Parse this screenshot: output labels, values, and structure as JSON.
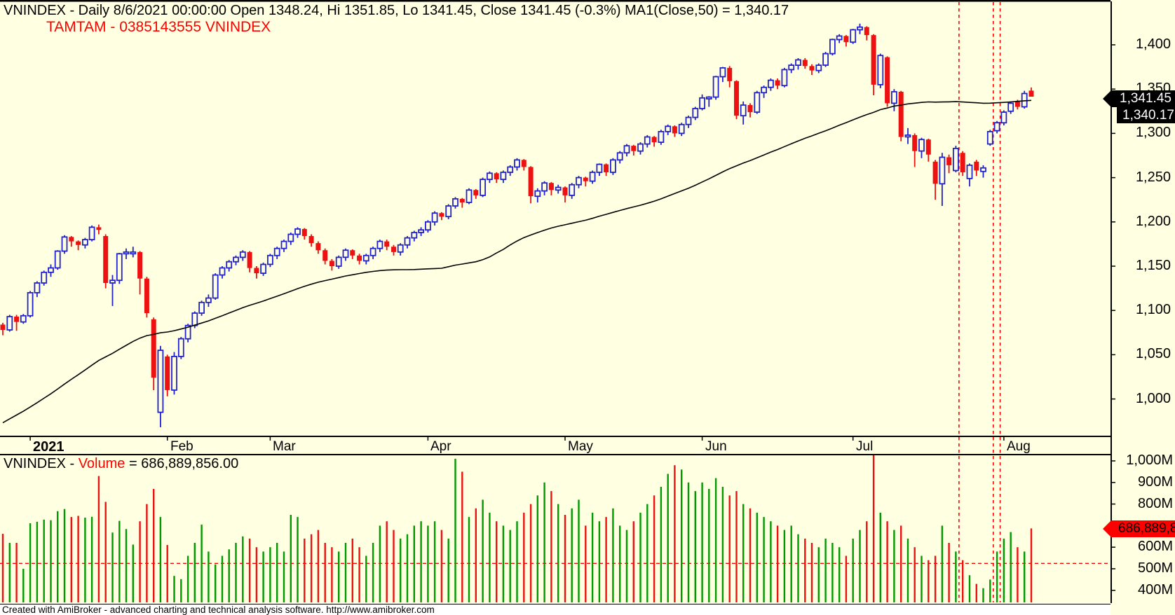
{
  "header": {
    "title": "VNINDEX - Daily 8/6/2021 00:00:00 Open 1348.24, Hi 1351.85, Lo 1341.45, Close 1341.45 (-0.3%) MA1(Close,50) = 1,340.17",
    "watermark": "TAMTAM - 0385143555 VNINDEX"
  },
  "volume_header": {
    "prefix": "VNINDEX - ",
    "label": "Volume",
    "suffix": " = 686,889,856.00"
  },
  "footer": {
    "text": "Created with AmiBroker - advanced charting and technical analysis software. http://www.amibroker.com"
  },
  "price_axis": {
    "ticks": [
      {
        "label": "1,400",
        "value": 1400
      },
      {
        "label": "1,350",
        "value": 1350
      },
      {
        "label": "1,300",
        "value": 1300
      },
      {
        "label": "1,250",
        "value": 1250
      },
      {
        "label": "1,200",
        "value": 1200
      },
      {
        "label": "1,150",
        "value": 1150
      },
      {
        "label": "1,100",
        "value": 1100
      },
      {
        "label": "1,050",
        "value": 1050
      },
      {
        "label": "1,000",
        "value": 1000
      }
    ],
    "last_close_label": "1,341.45",
    "ma_value_label": "1,340.17"
  },
  "volume_axis": {
    "ticks": [
      {
        "label": "1,000M",
        "value": 1000
      },
      {
        "label": "900M",
        "value": 900
      },
      {
        "label": "800M",
        "value": 800
      },
      {
        "label": "600M",
        "value": 600
      },
      {
        "label": "500M",
        "value": 500
      },
      {
        "label": "400M",
        "value": 400
      }
    ],
    "current_volume_label": "686,889,8"
  },
  "date_axis": {
    "labels": [
      {
        "text": "2021",
        "index": 4,
        "bold": true
      },
      {
        "text": "Feb",
        "index": 24,
        "bold": false
      },
      {
        "text": "Mar",
        "index": 39,
        "bold": false
      },
      {
        "text": "Apr",
        "index": 62,
        "bold": false
      },
      {
        "text": "May",
        "index": 82,
        "bold": false
      },
      {
        "text": "Jun",
        "index": 102,
        "bold": false
      },
      {
        "text": "Jul",
        "index": 124,
        "bold": false
      },
      {
        "text": "Aug",
        "index": 146,
        "bold": false
      }
    ]
  },
  "colors": {
    "background": "#FFFFE1",
    "candle_up": "#2222CC",
    "candle_down": "#EE1111",
    "volume_up": "#009900",
    "volume_down": "#EE1111",
    "ma_line": "#000000",
    "marker": "#FF0000",
    "border": "#000000"
  },
  "chart_data": {
    "type": "candlestick+volume",
    "symbol": "VNINDEX",
    "interval": "Daily",
    "last_bar_date": "8/6/2021 00:00:00",
    "last_bar": {
      "open": 1348.24,
      "high": 1351.85,
      "low": 1341.45,
      "close": 1341.45,
      "change_pct": -0.3,
      "volume": 686889856
    },
    "ma": {
      "type": "MA1(Close,50)",
      "period": 50,
      "last_value": 1340.17,
      "seed_from": 870,
      "seed_to": 1072,
      "seed_count": 49
    },
    "price_axis_range": [
      961,
      1450
    ],
    "volume_axis_range_m": [
      350,
      1015
    ],
    "markers": {
      "vline_indices": [
        139,
        144,
        145
      ],
      "volume_hline_m": 525
    },
    "candles_format": [
      "open",
      "high",
      "low",
      "close",
      "volume_millions"
    ],
    "candles": [
      [
        1084,
        1086,
        1072,
        1078,
        662
      ],
      [
        1078,
        1095,
        1076,
        1093,
        620
      ],
      [
        1093,
        1095,
        1077,
        1087,
        620
      ],
      [
        1087,
        1096,
        1085,
        1094,
        500
      ],
      [
        1094,
        1122,
        1092,
        1120,
        711
      ],
      [
        1120,
        1133,
        1115,
        1131,
        718
      ],
      [
        1131,
        1145,
        1128,
        1143,
        728
      ],
      [
        1143,
        1152,
        1138,
        1148,
        725
      ],
      [
        1148,
        1168,
        1146,
        1167,
        767
      ],
      [
        1167,
        1185,
        1164,
        1183,
        777
      ],
      [
        1183,
        1184,
        1172,
        1178,
        740
      ],
      [
        1178,
        1179,
        1168,
        1174,
        745
      ],
      [
        1174,
        1182,
        1170,
        1180,
        737
      ],
      [
        1180,
        1196,
        1178,
        1194,
        741
      ],
      [
        1194,
        1197,
        1186,
        1191,
        930
      ],
      [
        1184,
        1186,
        1125,
        1131,
        810
      ],
      [
        1131,
        1140,
        1105,
        1134,
        668
      ],
      [
        1134,
        1165,
        1130,
        1164,
        722
      ],
      [
        1164,
        1170,
        1158,
        1166,
        684
      ],
      [
        1166,
        1172,
        1160,
        1166,
        612
      ],
      [
        1166,
        1167,
        1118,
        1136,
        720
      ],
      [
        1136,
        1138,
        1092,
        1097,
        800
      ],
      [
        1090,
        1092,
        1010,
        1024,
        870
      ],
      [
        985,
        1060,
        968,
        1055,
        740
      ],
      [
        1048,
        1050,
        1003,
        1010,
        610
      ],
      [
        1010,
        1053,
        1005,
        1048,
        467
      ],
      [
        1048,
        1070,
        1045,
        1068,
        452
      ],
      [
        1068,
        1085,
        1064,
        1083,
        560
      ],
      [
        1083,
        1099,
        1080,
        1097,
        620
      ],
      [
        1097,
        1111,
        1094,
        1109,
        705
      ],
      [
        1109,
        1118,
        1104,
        1114,
        580
      ],
      [
        1114,
        1142,
        1112,
        1140,
        520
      ],
      [
        1140,
        1150,
        1136,
        1148,
        560
      ],
      [
        1148,
        1157,
        1144,
        1155,
        590
      ],
      [
        1155,
        1162,
        1151,
        1160,
        620
      ],
      [
        1160,
        1168,
        1156,
        1166,
        650
      ],
      [
        1166,
        1167,
        1143,
        1148,
        640
      ],
      [
        1148,
        1150,
        1136,
        1142,
        600
      ],
      [
        1142,
        1154,
        1139,
        1152,
        580
      ],
      [
        1152,
        1164,
        1149,
        1162,
        600
      ],
      [
        1162,
        1172,
        1158,
        1170,
        620
      ],
      [
        1170,
        1180,
        1166,
        1178,
        580
      ],
      [
        1178,
        1188,
        1174,
        1186,
        750
      ],
      [
        1186,
        1194,
        1182,
        1192,
        740
      ],
      [
        1192,
        1193,
        1180,
        1184,
        640
      ],
      [
        1184,
        1186,
        1172,
        1176,
        660
      ],
      [
        1176,
        1178,
        1164,
        1168,
        680
      ],
      [
        1168,
        1170,
        1152,
        1156,
        620
      ],
      [
        1156,
        1158,
        1145,
        1150,
        600
      ],
      [
        1150,
        1162,
        1147,
        1160,
        580
      ],
      [
        1160,
        1170,
        1156,
        1168,
        620
      ],
      [
        1168,
        1169,
        1158,
        1162,
        640
      ],
      [
        1162,
        1164,
        1152,
        1156,
        600
      ],
      [
        1156,
        1164,
        1152,
        1162,
        560
      ],
      [
        1162,
        1172,
        1158,
        1170,
        620
      ],
      [
        1170,
        1180,
        1166,
        1178,
        700
      ],
      [
        1178,
        1180,
        1168,
        1172,
        720
      ],
      [
        1172,
        1174,
        1162,
        1166,
        680
      ],
      [
        1166,
        1176,
        1162,
        1174,
        640
      ],
      [
        1174,
        1184,
        1170,
        1182,
        660
      ],
      [
        1182,
        1190,
        1178,
        1188,
        700
      ],
      [
        1188,
        1194,
        1184,
        1191,
        720
      ],
      [
        1191,
        1202,
        1188,
        1200,
        700
      ],
      [
        1200,
        1212,
        1196,
        1210,
        720
      ],
      [
        1210,
        1211,
        1202,
        1206,
        680
      ],
      [
        1206,
        1220,
        1203,
        1218,
        640
      ],
      [
        1218,
        1228,
        1215,
        1226,
        1010
      ],
      [
        1226,
        1227,
        1216,
        1222,
        950
      ],
      [
        1222,
        1238,
        1220,
        1236,
        740
      ],
      [
        1236,
        1237,
        1226,
        1230,
        780
      ],
      [
        1230,
        1250,
        1228,
        1248,
        820
      ],
      [
        1248,
        1257,
        1244,
        1255,
        760
      ],
      [
        1255,
        1256,
        1244,
        1248,
        720
      ],
      [
        1248,
        1258,
        1244,
        1256,
        700
      ],
      [
        1256,
        1264,
        1252,
        1262,
        680
      ],
      [
        1262,
        1272,
        1258,
        1270,
        720
      ],
      [
        1270,
        1271,
        1258,
        1262,
        760
      ],
      [
        1262,
        1263,
        1221,
        1229,
        800
      ],
      [
        1229,
        1238,
        1222,
        1235,
        840
      ],
      [
        1235,
        1246,
        1230,
        1244,
        900
      ],
      [
        1244,
        1245,
        1230,
        1236,
        860
      ],
      [
        1236,
        1242,
        1232,
        1239,
        800
      ],
      [
        1239,
        1240,
        1222,
        1230,
        750
      ],
      [
        1230,
        1244,
        1226,
        1242,
        780
      ],
      [
        1242,
        1252,
        1238,
        1250,
        820
      ],
      [
        1250,
        1251,
        1240,
        1246,
        700
      ],
      [
        1246,
        1258,
        1243,
        1256,
        760
      ],
      [
        1256,
        1266,
        1252,
        1265,
        720
      ],
      [
        1265,
        1266,
        1252,
        1256,
        740
      ],
      [
        1256,
        1272,
        1253,
        1270,
        780
      ],
      [
        1270,
        1280,
        1266,
        1278,
        700
      ],
      [
        1278,
        1288,
        1274,
        1286,
        680
      ],
      [
        1286,
        1287,
        1275,
        1280,
        720
      ],
      [
        1280,
        1290,
        1276,
        1288,
        760
      ],
      [
        1288,
        1298,
        1284,
        1296,
        800
      ],
      [
        1296,
        1297,
        1285,
        1290,
        840
      ],
      [
        1290,
        1304,
        1287,
        1302,
        880
      ],
      [
        1302,
        1310,
        1298,
        1308,
        940
      ],
      [
        1308,
        1309,
        1296,
        1300,
        980
      ],
      [
        1300,
        1312,
        1297,
        1310,
        960
      ],
      [
        1310,
        1320,
        1306,
        1318,
        900
      ],
      [
        1318,
        1330,
        1315,
        1328,
        860
      ],
      [
        1328,
        1344,
        1326,
        1340,
        900
      ],
      [
        1340,
        1342,
        1330,
        1341,
        870
      ],
      [
        1341,
        1365,
        1338,
        1364,
        920
      ],
      [
        1364,
        1375,
        1358,
        1374,
        880
      ],
      [
        1374,
        1376,
        1352,
        1359,
        840
      ],
      [
        1359,
        1360,
        1316,
        1320,
        860
      ],
      [
        1320,
        1336,
        1310,
        1332,
        800
      ],
      [
        1332,
        1334,
        1318,
        1324,
        780
      ],
      [
        1324,
        1348,
        1322,
        1346,
        760
      ],
      [
        1346,
        1354,
        1340,
        1352,
        740
      ],
      [
        1352,
        1362,
        1348,
        1360,
        720
      ],
      [
        1360,
        1362,
        1350,
        1354,
        700
      ],
      [
        1354,
        1374,
        1352,
        1372,
        680
      ],
      [
        1372,
        1379,
        1368,
        1377,
        700
      ],
      [
        1377,
        1385,
        1372,
        1383,
        660
      ],
      [
        1383,
        1385,
        1373,
        1376,
        640
      ],
      [
        1376,
        1378,
        1366,
        1371,
        620
      ],
      [
        1371,
        1379,
        1368,
        1377,
        600
      ],
      [
        1377,
        1392,
        1375,
        1390,
        640
      ],
      [
        1390,
        1407,
        1388,
        1406,
        620
      ],
      [
        1406,
        1412,
        1402,
        1410,
        600
      ],
      [
        1410,
        1411,
        1398,
        1403,
        560
      ],
      [
        1403,
        1418,
        1401,
        1417,
        640
      ],
      [
        1417,
        1424,
        1412,
        1420,
        680
      ],
      [
        1420,
        1421,
        1405,
        1411,
        720
      ],
      [
        1411,
        1412,
        1343,
        1355,
        1040
      ],
      [
        1355,
        1390,
        1351,
        1388,
        760
      ],
      [
        1386,
        1387,
        1330,
        1334,
        720
      ],
      [
        1334,
        1350,
        1325,
        1347,
        680
      ],
      [
        1347,
        1348,
        1291,
        1296,
        700
      ],
      [
        1296,
        1306,
        1288,
        1298,
        640
      ],
      [
        1298,
        1300,
        1262,
        1280,
        600
      ],
      [
        1280,
        1295,
        1272,
        1293,
        560
      ],
      [
        1293,
        1294,
        1268,
        1276,
        540
      ],
      [
        1268,
        1270,
        1225,
        1243,
        560
      ],
      [
        1243,
        1278,
        1218,
        1273,
        700
      ],
      [
        1273,
        1276,
        1255,
        1264,
        620
      ],
      [
        1258,
        1286,
        1256,
        1283,
        580
      ],
      [
        1278,
        1280,
        1252,
        1256,
        540
      ],
      [
        1249,
        1266,
        1240,
        1264,
        470
      ],
      [
        1268,
        1270,
        1252,
        1258,
        430
      ],
      [
        1257,
        1264,
        1250,
        1261,
        410
      ],
      [
        1288,
        1304,
        1286,
        1302,
        450
      ],
      [
        1303,
        1314,
        1300,
        1312,
        580
      ],
      [
        1312,
        1326,
        1309,
        1324,
        640
      ],
      [
        1325,
        1336,
        1322,
        1334,
        670
      ],
      [
        1336,
        1338,
        1327,
        1330,
        600
      ],
      [
        1330,
        1348,
        1328,
        1345,
        580
      ],
      [
        1348.24,
        1351.85,
        1341.45,
        1341.45,
        687
      ]
    ]
  }
}
